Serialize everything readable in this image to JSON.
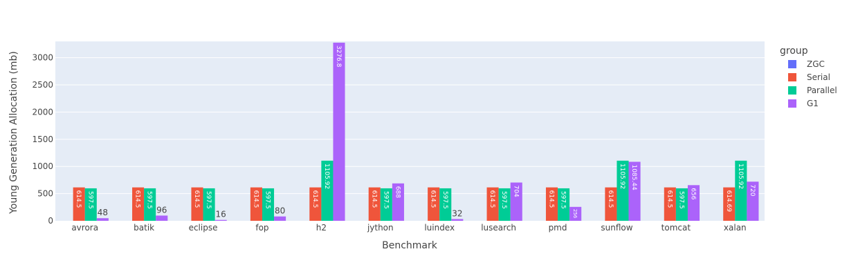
{
  "chart_data": {
    "type": "bar",
    "xlabel": "Benchmark",
    "ylabel": "Young Generation Allocation (mb)",
    "ylim": [
      0,
      3300
    ],
    "yticks": [
      0,
      500,
      1000,
      1500,
      2000,
      2500,
      3000
    ],
    "grid": true,
    "legend_title": "group",
    "legend_position": "right",
    "categories": [
      "avrora",
      "batik",
      "eclipse",
      "fop",
      "h2",
      "jython",
      "luindex",
      "lusearch",
      "pmd",
      "sunflow",
      "tomcat",
      "xalan"
    ],
    "series": [
      {
        "name": "ZGC",
        "color": "#636efa",
        "values": [
          0,
          0,
          0,
          0,
          0,
          0,
          0,
          0,
          0,
          0,
          0,
          0
        ],
        "labels": [
          "",
          "",
          "",
          "",
          "",
          "",
          "",
          "",
          "",
          "",
          "",
          ""
        ]
      },
      {
        "name": "Serial",
        "color": "#ef553b",
        "values": [
          614.5,
          614.5,
          614.5,
          614.5,
          614.5,
          614.5,
          614.5,
          614.5,
          614.5,
          614.5,
          614.5,
          614.69
        ],
        "labels": [
          "614.5",
          "614.5",
          "614.5",
          "614.5",
          "614.5",
          "614.5",
          "614.5",
          "614.5",
          "614.5",
          "614.5",
          "614.5",
          "614.69"
        ]
      },
      {
        "name": "Parallel",
        "color": "#00cc96",
        "values": [
          597.5,
          597.5,
          597.5,
          597.5,
          1105.92,
          597.5,
          597.5,
          597.5,
          597.5,
          1105.92,
          597.5,
          1105.92
        ],
        "labels": [
          "597.5",
          "597.5",
          "597.5",
          "597.5",
          "1105.92",
          "597.5",
          "597.5",
          "597.5",
          "597.5",
          "1105.92",
          "597.5",
          "1105.92"
        ]
      },
      {
        "name": "G1",
        "color": "#ab63fa",
        "values": [
          48,
          96,
          16,
          80,
          3276.8,
          688,
          32,
          704,
          256,
          1085.44,
          656,
          720
        ],
        "labels": [
          "48",
          "96",
          "16",
          "80",
          "3276.8",
          "688",
          "32",
          "704",
          "256",
          "1085.44",
          "656",
          "720"
        ]
      }
    ]
  }
}
